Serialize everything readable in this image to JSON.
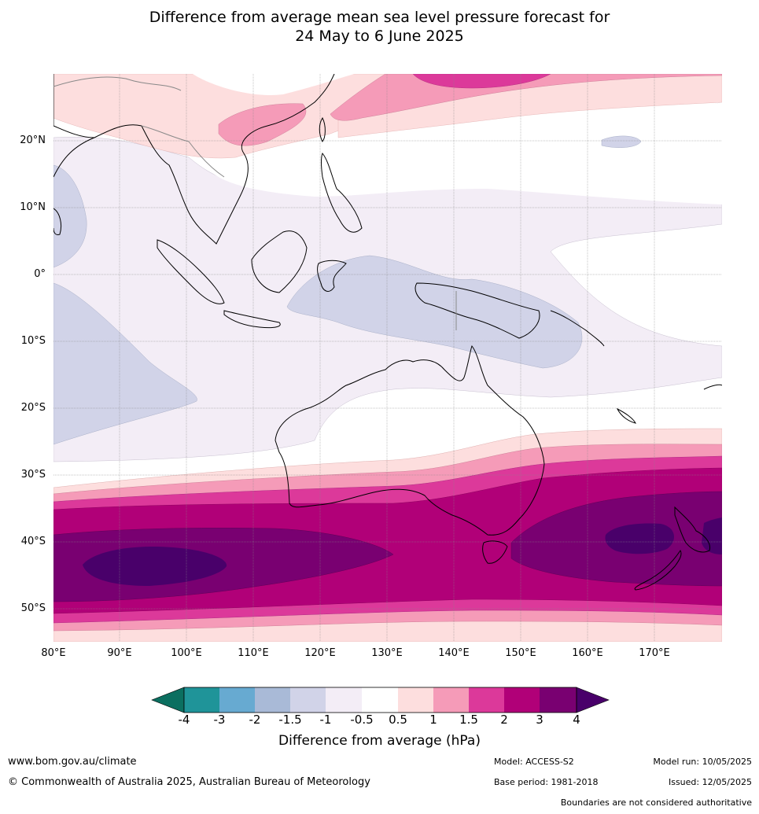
{
  "title_line1": "Difference from average mean sea level pressure forecast for",
  "title_line2": "24 May to 6 June 2025",
  "lat_labels": [
    "20°N",
    "10°N",
    "0°",
    "10°S",
    "20°S",
    "30°S",
    "40°S",
    "50°S"
  ],
  "lon_labels": [
    "80°E",
    "90°E",
    "100°E",
    "110°E",
    "120°E",
    "130°E",
    "140°E",
    "150°E",
    "160°E",
    "170°E"
  ],
  "colorbar": {
    "ticks": [
      "-4",
      "-3",
      "-2",
      "-1.5",
      "-1",
      "-0.5",
      "0.5",
      "1",
      "1.5",
      "2",
      "3",
      "4"
    ],
    "colors": [
      "#0b6f60",
      "#1f9499",
      "#67aad1",
      "#a9bad7",
      "#d1d3e8",
      "#f3edf6",
      "#ffffff",
      "#fddede",
      "#f59bb8",
      "#dc399a",
      "#b10078",
      "#790071",
      "#49006a"
    ],
    "title": "Difference from average (hPa)"
  },
  "footer": {
    "website": "www.bom.gov.au/climate",
    "copyright": "© Commonwealth of Australia 2025, Australian Bureau of Meteorology",
    "model": "Model: ACCESS-S2",
    "base_period": "Base period: 1981-2018",
    "model_run": "Model run: 10/05/2025",
    "issued": "Issued: 12/05/2025",
    "disclaimer": "Boundaries are not considered authoritative"
  }
}
